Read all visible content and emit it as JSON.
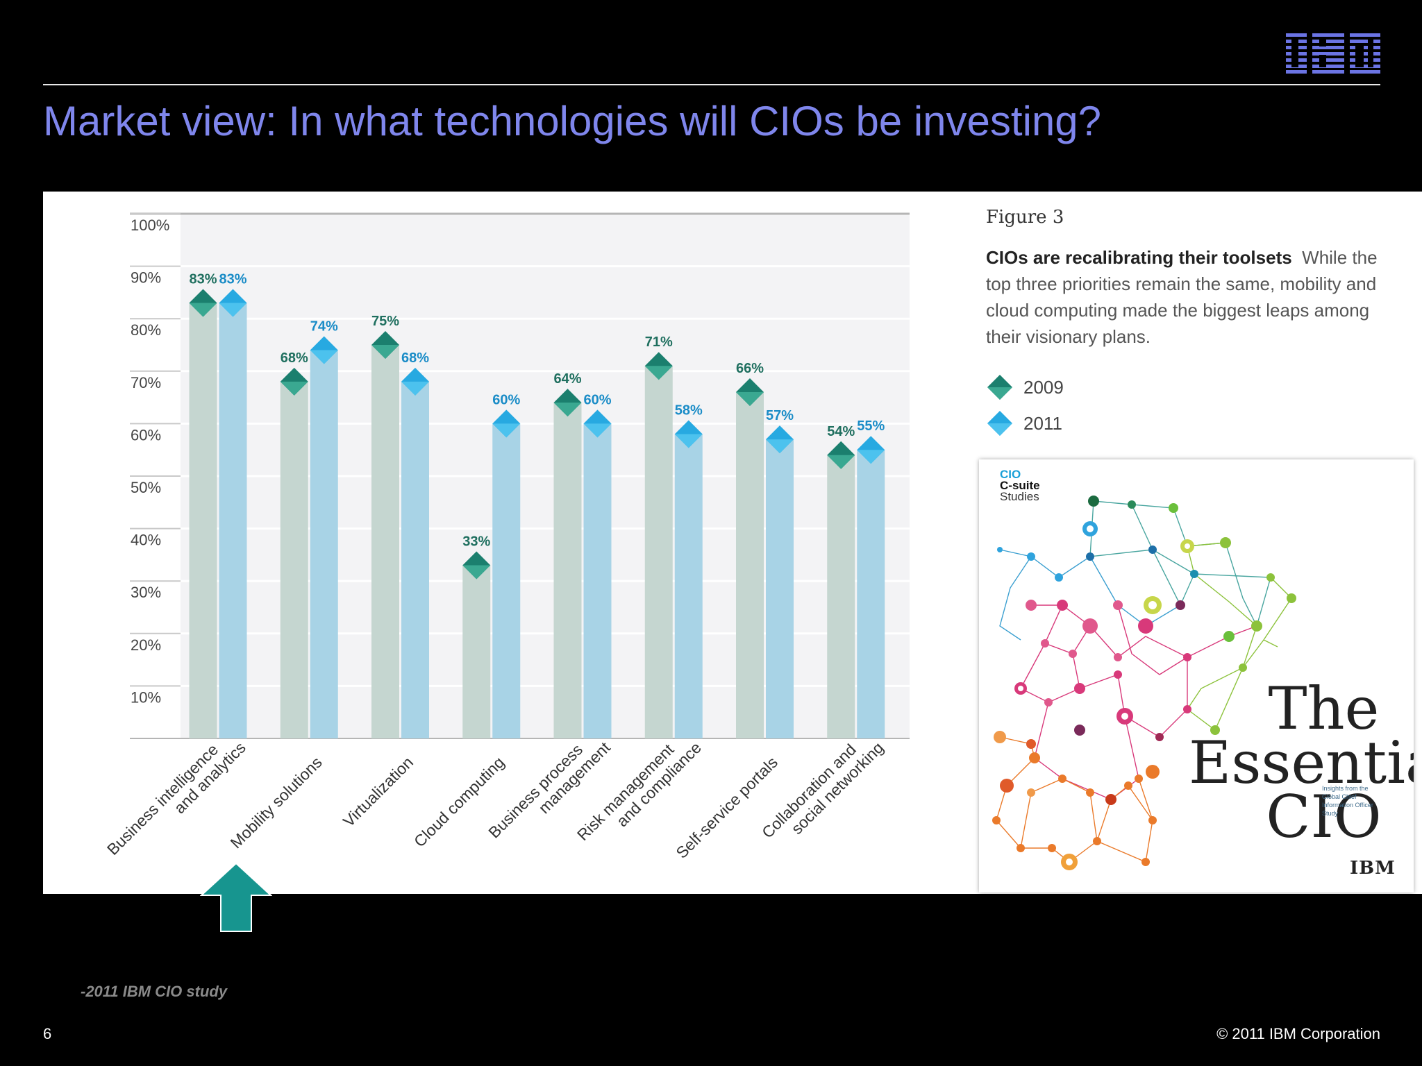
{
  "slide": {
    "logo": "IBM",
    "title": "Market view: In what technologies will CIOs be investing?",
    "source": "-2011 IBM CIO study",
    "page_number": "6",
    "copyright": "© 2011 IBM Corporation"
  },
  "figure": {
    "label": "Figure 3",
    "caption_bold": "CIOs are recalibrating their toolsets",
    "caption_text": "While the top three priorities remain the same, mobility and cloud computing made the biggest leaps among their visionary plans."
  },
  "cover": {
    "series_line1": "CIO",
    "series_line2": "C-suite",
    "series_line3": "Studies",
    "title_line1": "The",
    "title_line2": "Essential",
    "title_line3": "CIO",
    "subtitle": "Insights from the Global Chief Information Officer Study",
    "logo": "IBM"
  },
  "colors": {
    "series_2009_marker": "#1b7f6e",
    "series_2011_marker": "#27a9e1",
    "series_2009_bar": "#c5d6d0",
    "series_2011_bar": "#a8d3e6",
    "title": "#7f86ec",
    "arrow": "#17958f"
  },
  "chart_data": {
    "type": "bar",
    "categories": [
      "Business intelligence\nand analytics",
      "Mobility solutions",
      "Virtualization",
      "Cloud computing",
      "Business process\nmanagement",
      "Risk management\nand compliance",
      "Self-service portals",
      "Collaboration and\nsocial networking"
    ],
    "series": [
      {
        "name": "2009",
        "values": [
          83,
          68,
          75,
          33,
          64,
          71,
          66,
          54
        ]
      },
      {
        "name": "2011",
        "values": [
          83,
          74,
          68,
          60,
          60,
          58,
          57,
          55
        ]
      }
    ],
    "data_labels": {
      "2009": [
        "83%",
        "68%",
        "75%",
        "33%",
        "64%",
        "71%",
        "66%",
        "54%"
      ],
      "2011": [
        "83%",
        "74%",
        "68%",
        "60%",
        "60%",
        "58%",
        "57%",
        "55%"
      ]
    },
    "ytick_labels": [
      "10%",
      "20%",
      "30%",
      "40%",
      "50%",
      "60%",
      "70%",
      "80%",
      "90%",
      "100%"
    ],
    "ylim": [
      0,
      100
    ],
    "grid": true,
    "legend_position": "right",
    "highlight_category": "Mobility solutions"
  }
}
